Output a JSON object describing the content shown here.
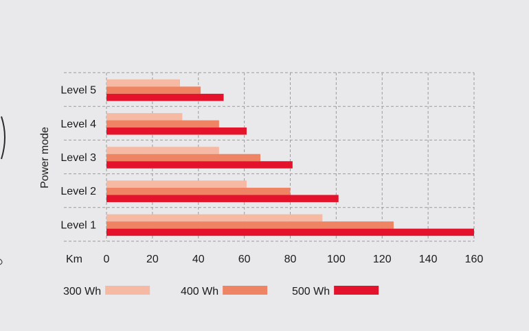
{
  "chart_data": {
    "type": "bar",
    "orientation": "horizontal",
    "ylabel": "Power mode",
    "xlabel": "Km",
    "xlim": [
      0,
      160
    ],
    "xticks": [
      0,
      20,
      40,
      60,
      80,
      100,
      120,
      140,
      160
    ],
    "categories": [
      "Level 5",
      "Level 4",
      "Level 3",
      "Level 2",
      "Level 1"
    ],
    "series": [
      {
        "name": "300 Wh",
        "color": "#f6b9a4",
        "values": [
          32,
          33,
          49,
          61,
          94
        ]
      },
      {
        "name": "400 Wh",
        "color": "#ee8463",
        "values": [
          41,
          49,
          67,
          80,
          125
        ]
      },
      {
        "name": "500 Wh",
        "color": "#e4122a",
        "values": [
          51,
          61,
          81,
          101,
          160
        ]
      }
    ],
    "grid": true,
    "legend_position": "bottom-left"
  }
}
